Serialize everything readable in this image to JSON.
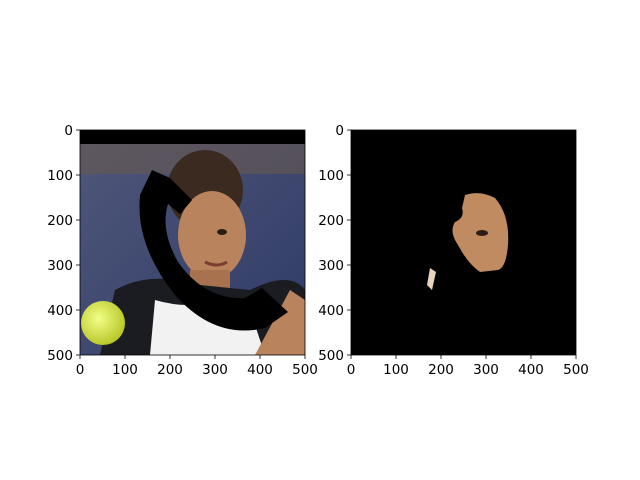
{
  "figure": {
    "background": "#ffffff"
  },
  "chart_data": [
    {
      "type": "image",
      "panel": "left",
      "title": "",
      "xlabel": "",
      "ylabel": "",
      "xlim": [
        0,
        500
      ],
      "ylim": [
        500,
        0
      ],
      "xticks": [
        0,
        100,
        200,
        300,
        400,
        500
      ],
      "yticks": [
        0,
        100,
        200,
        300,
        400,
        500
      ],
      "xtick_labels": [
        "0",
        "100",
        "200",
        "300",
        "400",
        "500"
      ],
      "ytick_labels": [
        "0",
        "100",
        "200",
        "300",
        "400",
        "500"
      ],
      "grid": false,
      "content": "photo",
      "colors": {
        "background_blue": "#3c4a7a",
        "skin": "#b9835d",
        "hair": "#3a2a20",
        "shirt_dark": "#1b1b22",
        "shirt_white": "#f2f2f2",
        "ball": "#d7e84a",
        "mask_black": "#000000"
      }
    },
    {
      "type": "image",
      "panel": "right",
      "title": "",
      "xlabel": "",
      "ylabel": "",
      "xlim": [
        0,
        500
      ],
      "ylim": [
        500,
        0
      ],
      "xticks": [
        0,
        100,
        200,
        300,
        400,
        500
      ],
      "yticks": [
        0,
        100,
        200,
        300,
        400,
        500
      ],
      "xtick_labels": [
        "0",
        "100",
        "200",
        "300",
        "400",
        "500"
      ],
      "ytick_labels": [
        "0",
        "100",
        "200",
        "300",
        "400",
        "500"
      ],
      "grid": false,
      "content": "segmented-face-on-black",
      "colors": {
        "background": "#000000",
        "skin": "#c18b62"
      }
    }
  ]
}
